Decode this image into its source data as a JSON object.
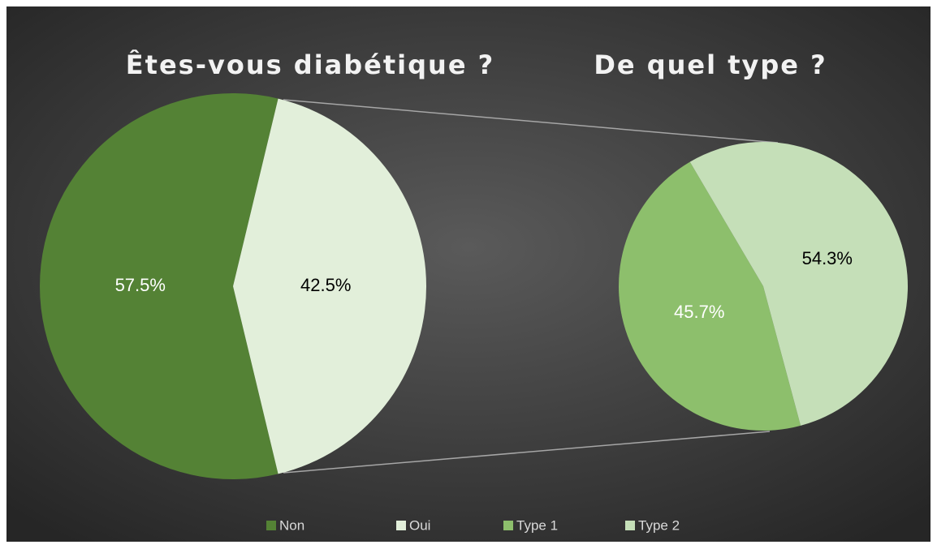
{
  "chart_data": [
    {
      "type": "pie",
      "title": "Êtes-vous diabétique ?",
      "categories": [
        "Non",
        "Oui"
      ],
      "values": [
        57.5,
        42.5
      ],
      "value_labels": [
        "57.5%",
        "42.5%"
      ],
      "colors": [
        "#548235",
        "#e2efda"
      ]
    },
    {
      "type": "pie",
      "title": "De quel type ?",
      "categories": [
        "Type 1",
        "Type 2"
      ],
      "values": [
        45.7,
        54.3
      ],
      "value_labels": [
        "45.7%",
        "54.3%"
      ],
      "colors": [
        "#8dbf6c",
        "#c5dfb8"
      ]
    }
  ]
}
